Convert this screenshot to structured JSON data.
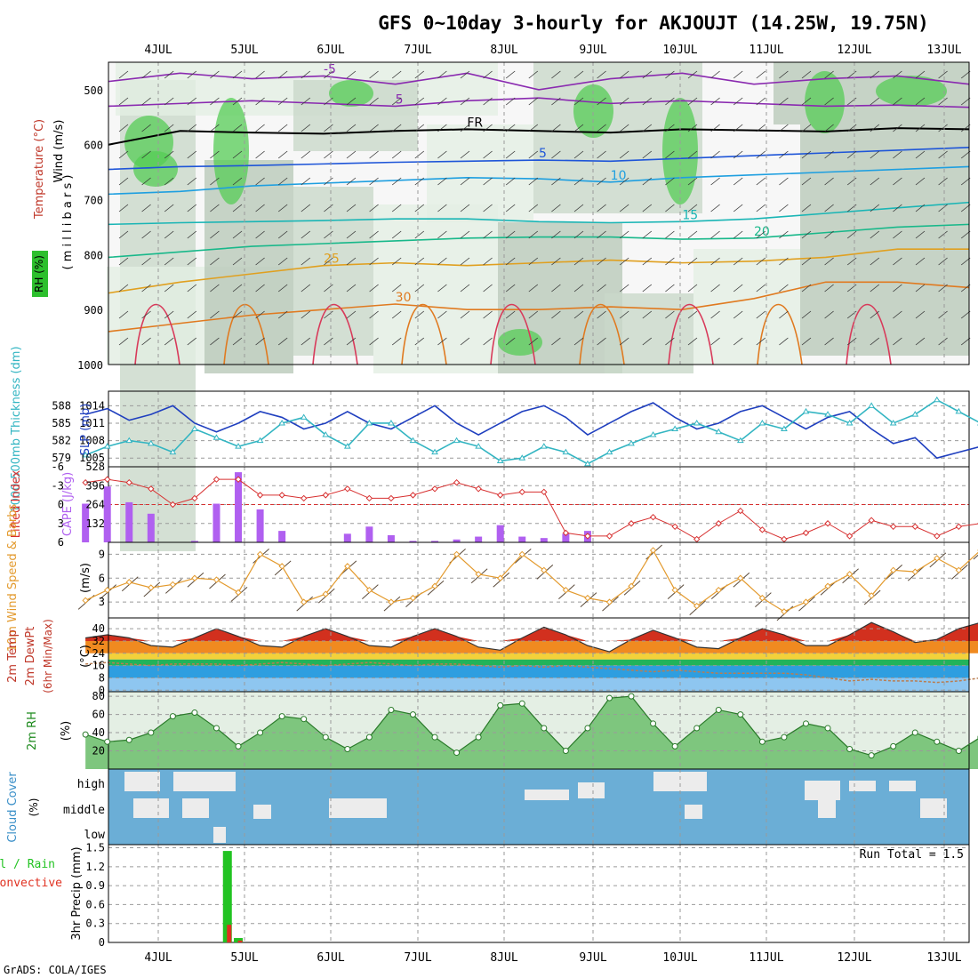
{
  "title": "GFS 0~10day 3-hourly for AKJOUJT (14.25W, 19.75N)",
  "footer": "GrADS: COLA/IGES",
  "days": [
    "4JUL",
    "5JUL",
    "6JUL",
    "7JUL",
    "8JUL",
    "9JUL",
    "10JUL",
    "11JUL",
    "12JUL",
    "13JUL"
  ],
  "colors": {
    "grid": "#9a9a9a",
    "slp": "#1f3fbf",
    "thickness": "#33b5c2",
    "lifted": "#d73030",
    "cape": "#b060f0",
    "wind": "#e39a2d",
    "barb": "#5a4a3a",
    "rh": "#21a321",
    "cloud_bg": "#6baed6",
    "cloud_fill": "#ececec",
    "precip_total": "#22c322",
    "precip_conv": "#e03020"
  },
  "chart_data": [
    {
      "panel": "upper-air",
      "type": "heatmap",
      "labels": {
        "wind": "Wind (m/s)",
        "temperature": "Temperature (°C)",
        "rh": "RH (%)",
        "yaxis": "( m i l l i b a r s )"
      },
      "yticks": [
        500,
        600,
        700,
        800,
        900,
        1000
      ],
      "ylim": [
        450,
        1000
      ],
      "isotherms": [
        {
          "label": "-5",
          "pressure": [
            485,
            470,
            480,
            475,
            490,
            470,
            500,
            480,
            470,
            490,
            480,
            475,
            490
          ]
        },
        {
          "label": "5",
          "pressure": [
            530,
            525,
            520,
            525,
            530,
            520,
            515,
            525,
            520,
            525,
            530,
            528,
            532
          ]
        },
        {
          "label": "FR",
          "pressure": [
            600,
            575,
            578,
            580,
            575,
            572,
            575,
            578,
            572,
            574,
            576,
            570,
            572
          ]
        },
        {
          "label": "5",
          "pressure": [
            645,
            640,
            638,
            635,
            632,
            630,
            628,
            630,
            625,
            620,
            615,
            610,
            605
          ]
        },
        {
          "label": "10",
          "pressure": [
            690,
            685,
            675,
            670,
            665,
            660,
            662,
            668,
            660,
            655,
            650,
            645,
            640
          ]
        },
        {
          "label": "15",
          "pressure": [
            745,
            742,
            740,
            738,
            735,
            735,
            740,
            742,
            740,
            735,
            725,
            715,
            705
          ]
        },
        {
          "label": "20",
          "pressure": [
            805,
            795,
            785,
            780,
            775,
            770,
            768,
            768,
            772,
            770,
            760,
            750,
            745
          ]
        },
        {
          "label": "25",
          "pressure": [
            870,
            850,
            835,
            820,
            815,
            820,
            815,
            810,
            815,
            812,
            805,
            790,
            790
          ]
        },
        {
          "label": "30",
          "pressure": [
            940,
            925,
            910,
            900,
            890,
            900,
            900,
            895,
            900,
            880,
            850,
            850,
            860
          ]
        }
      ],
      "contour_labels": [
        "-5",
        "5",
        "FR",
        "5",
        "10",
        "15",
        "20",
        "25",
        "30",
        "30",
        "30",
        "30"
      ]
    },
    {
      "panel": "slp-thickness",
      "type": "line",
      "labels": {
        "thickness": "1000-500mb Thickness (dm)",
        "slp": "SLP (mb)"
      },
      "thickness_ticks": [
        579,
        582,
        585,
        588
      ],
      "slp_ticks": [
        1005,
        1008,
        1011,
        1014
      ],
      "ylim": [
        1003.5,
        1016.5
      ],
      "x": [
        0,
        6,
        12,
        18,
        24,
        30,
        36,
        42,
        48,
        54,
        60,
        66,
        72,
        78,
        84,
        90,
        96,
        102,
        108,
        114,
        120,
        126,
        132,
        138,
        144,
        150,
        156,
        162,
        168,
        174,
        180,
        186,
        192,
        198,
        204,
        210,
        216,
        222,
        228,
        234,
        240,
        246
      ],
      "series": [
        {
          "name": "SLP",
          "values": [
            1012.5,
            1013.5,
            1011.5,
            1012.5,
            1014,
            1011,
            1009.5,
            1011,
            1013,
            1012,
            1010,
            1011,
            1013,
            1011,
            1010,
            1012,
            1014,
            1011,
            1009,
            1011,
            1013,
            1014,
            1012,
            1009,
            1011,
            1013,
            1014.5,
            1012,
            1010,
            1011,
            1013,
            1014,
            1012,
            1010,
            1012,
            1013,
            1010,
            1007.5,
            1008.5,
            1005,
            1006,
            1007
          ]
        },
        {
          "name": "Thickness",
          "values": [
            1005.5,
            1007,
            1008,
            1007.5,
            1006,
            1010,
            1008.5,
            1007,
            1008,
            1011,
            1012,
            1009,
            1007,
            1011,
            1011,
            1008,
            1006,
            1008,
            1007,
            1004.5,
            1005,
            1007,
            1006,
            1004,
            1006,
            1007.5,
            1009,
            1010,
            1011,
            1009.5,
            1008,
            1011,
            1010,
            1013,
            1012.5,
            1011,
            1014,
            1011,
            1012.5,
            1015,
            1013,
            1011
          ]
        }
      ]
    },
    {
      "panel": "lifted-cape",
      "type": "bar",
      "labels": {
        "lifted": "Lifted Index",
        "cape": "CAPE (J/kg)"
      },
      "lifted_ticks": [
        "-6",
        "-3",
        "0",
        "3",
        "6"
      ],
      "cape_ticks": [
        132,
        264,
        396,
        528
      ],
      "ylim": [
        0,
        528
      ],
      "x": [
        0,
        6,
        12,
        18,
        24,
        30,
        36,
        42,
        48,
        54,
        60,
        66,
        72,
        78,
        84,
        90,
        96,
        102,
        108,
        114,
        120,
        126,
        132,
        138,
        144,
        150,
        156,
        162,
        168,
        174,
        180,
        186,
        192,
        198,
        204,
        210,
        216,
        222,
        228,
        234,
        240,
        246
      ],
      "series": [
        {
          "name": "Lifted Index",
          "values": [
            -3.5,
            -4,
            -3.5,
            -2.5,
            0,
            -1,
            -4,
            -4,
            -1.5,
            -1.5,
            -1,
            -1.5,
            -2.5,
            -1,
            -1,
            -1.5,
            -2.5,
            -3.5,
            -2.5,
            -1.5,
            -2,
            -2,
            4.5,
            5,
            5,
            3,
            2,
            3.5,
            5.5,
            3,
            1,
            4,
            5.5,
            4.5,
            3,
            5,
            2.5,
            3.5,
            3.5,
            5,
            3.5,
            3
          ]
        },
        {
          "name": "CAPE",
          "values": [
            270,
            390,
            280,
            200,
            0,
            10,
            270,
            490,
            230,
            80,
            0,
            0,
            60,
            110,
            50,
            10,
            10,
            20,
            40,
            120,
            40,
            30,
            60,
            80,
            0,
            0,
            0,
            0,
            0,
            0,
            0,
            0,
            0,
            0,
            0,
            0,
            0,
            0,
            0,
            0,
            0,
            0
          ]
        }
      ]
    },
    {
      "panel": "wind-10m",
      "type": "line",
      "labels": {
        "wind": "10m Wind Speed & Barbs",
        "units": "(m/s)"
      },
      "yticks": [
        3,
        6,
        9
      ],
      "ylim": [
        1,
        10.5
      ],
      "x": [
        0,
        6,
        12,
        18,
        24,
        30,
        36,
        42,
        48,
        54,
        60,
        66,
        72,
        78,
        84,
        90,
        96,
        102,
        108,
        114,
        120,
        126,
        132,
        138,
        144,
        150,
        156,
        162,
        168,
        174,
        180,
        186,
        192,
        198,
        204,
        210,
        216,
        222,
        228,
        234,
        240,
        246
      ],
      "series": [
        {
          "name": "Speed",
          "values": [
            3.2,
            4.5,
            5.5,
            4.8,
            5.2,
            6.0,
            5.8,
            4.2,
            9.0,
            7.5,
            3.0,
            4.0,
            7.5,
            4.5,
            3.0,
            3.5,
            5.0,
            9.0,
            6.5,
            6.0,
            9.0,
            7.0,
            4.5,
            3.5,
            3.0,
            5.0,
            9.5,
            4.5,
            2.5,
            4.5,
            6.0,
            3.5,
            1.8,
            3.0,
            5.0,
            6.5,
            3.8,
            7.0,
            6.8,
            8.5,
            7.0,
            9.5
          ]
        }
      ]
    },
    {
      "panel": "temp-2m",
      "type": "area",
      "labels": {
        "temp": "2m Temp",
        "dewpt": "2m DewPt",
        "minmax": "(6hr Min/Max)",
        "units": "(°C)"
      },
      "yticks": [
        0,
        8,
        16,
        24,
        32,
        40
      ],
      "ylim": [
        -1,
        47
      ],
      "x": [
        0,
        6,
        12,
        18,
        24,
        30,
        36,
        42,
        48,
        54,
        60,
        66,
        72,
        78,
        84,
        90,
        96,
        102,
        108,
        114,
        120,
        126,
        132,
        138,
        144,
        150,
        156,
        162,
        168,
        174,
        180,
        186,
        192,
        198,
        204,
        210,
        216,
        222,
        228,
        234,
        240,
        246
      ],
      "series": [
        {
          "name": "Temp",
          "values": [
            34,
            36,
            34,
            29,
            28,
            34,
            40,
            35,
            29,
            28,
            35,
            40,
            35,
            29,
            28,
            35,
            40,
            35,
            28,
            26,
            34,
            41,
            36,
            29,
            25,
            33,
            39,
            34,
            28,
            27,
            34,
            40,
            36,
            29,
            29,
            36,
            44,
            38,
            31,
            33,
            40,
            44
          ]
        },
        {
          "name": "DewPt",
          "values": [
            17,
            18,
            17,
            16,
            17,
            17,
            17,
            16,
            17,
            18,
            17,
            16,
            17,
            18,
            17,
            16,
            17,
            17,
            16,
            15,
            16,
            15,
            16,
            15,
            14,
            13,
            12,
            13,
            12,
            11,
            11,
            11,
            11,
            10,
            8,
            6,
            7,
            6,
            6,
            5,
            6,
            8
          ]
        }
      ]
    },
    {
      "panel": "rh-2m",
      "type": "area",
      "labels": {
        "rh": "2m RH",
        "units": "(%)"
      },
      "yticks": [
        20,
        40,
        60,
        80
      ],
      "ylim": [
        0,
        85
      ],
      "x": [
        0,
        6,
        12,
        18,
        24,
        30,
        36,
        42,
        48,
        54,
        60,
        66,
        72,
        78,
        84,
        90,
        96,
        102,
        108,
        114,
        120,
        126,
        132,
        138,
        144,
        150,
        156,
        162,
        168,
        174,
        180,
        186,
        192,
        198,
        204,
        210,
        216,
        222,
        228,
        234,
        240,
        246
      ],
      "series": [
        {
          "name": "RH",
          "values": [
            38,
            30,
            32,
            40,
            58,
            62,
            45,
            25,
            40,
            58,
            55,
            35,
            22,
            35,
            65,
            60,
            35,
            18,
            35,
            70,
            72,
            45,
            20,
            45,
            78,
            80,
            50,
            25,
            45,
            65,
            60,
            30,
            35,
            50,
            45,
            22,
            15,
            25,
            40,
            30,
            20,
            35
          ]
        }
      ]
    },
    {
      "panel": "cloud-cover",
      "type": "heatmap",
      "labels": {
        "cover": "Cloud Cover",
        "units": "(%)",
        "high": "high",
        "middle": "middle",
        "low": "low"
      }
    },
    {
      "panel": "precip-3hr",
      "type": "bar",
      "labels": {
        "total": "Total / Rain",
        "conv": "Convective",
        "precip": "3hr Precip (mm)",
        "run_total": "Run Total = 1.5"
      },
      "yticks": [
        "0",
        "0.3",
        "0.6",
        "0.9",
        "1.2",
        "1.5"
      ],
      "ylim": [
        0,
        1.55
      ],
      "series": [
        {
          "name": "Total",
          "x": [
            39,
            42
          ],
          "values": [
            1.45,
            0.07
          ]
        },
        {
          "name": "Convective",
          "x": [
            39,
            42
          ],
          "values": [
            0.28,
            0.03
          ]
        }
      ]
    }
  ]
}
